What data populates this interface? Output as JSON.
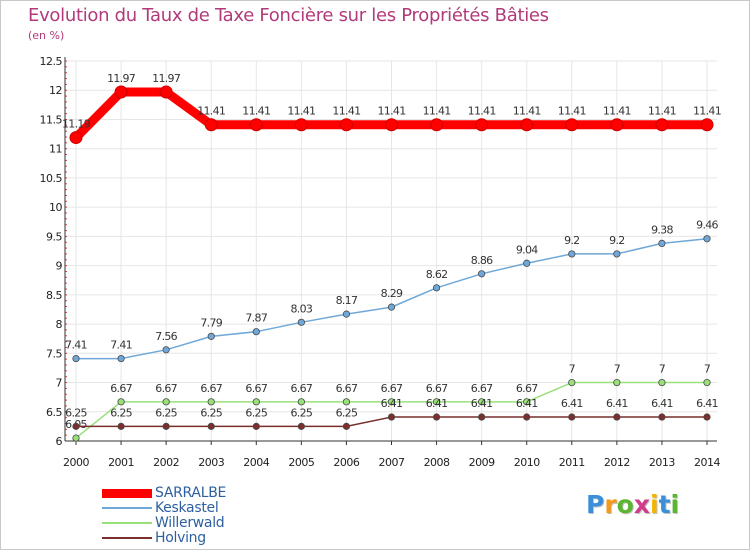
{
  "chart_data": {
    "type": "line",
    "title": "Evolution du Taux de Taxe Foncière sur les Propriétés Bâties",
    "ylabel": "(en %)",
    "xlabel": "",
    "categories": [
      "2000",
      "2001",
      "2002",
      "2003",
      "2004",
      "2005",
      "2006",
      "2007",
      "2008",
      "2009",
      "2010",
      "2011",
      "2012",
      "2013",
      "2014"
    ],
    "ylim": [
      6,
      12.5
    ],
    "yticks": [
      "6",
      "6.5",
      "7",
      "7.5",
      "8",
      "8.5",
      "9",
      "9.5",
      "10",
      "10.5",
      "11",
      "11.5",
      "12",
      "12.5"
    ],
    "grid": true,
    "legend_position": "bottom-left",
    "series": [
      {
        "name": "SARRALBE",
        "color": "#ff0000",
        "values": [
          11.19,
          11.97,
          11.97,
          11.41,
          11.41,
          11.41,
          11.41,
          11.41,
          11.41,
          11.41,
          11.41,
          11.41,
          11.41,
          11.41,
          11.41
        ],
        "labels": [
          "11.19",
          "11.97",
          "11.97",
          "11.41",
          "11.41",
          "11.41",
          "11.41",
          "11.41",
          "11.41",
          "11.41",
          "11.41",
          "11.41",
          "11.41",
          "11.41",
          "11.41"
        ]
      },
      {
        "name": "Keskastel",
        "color": "#6fa8d8",
        "values": [
          7.41,
          7.41,
          7.56,
          7.79,
          7.87,
          8.03,
          8.17,
          8.29,
          8.62,
          8.86,
          9.04,
          9.2,
          9.2,
          9.38,
          9.46
        ],
        "labels": [
          "7.41",
          "7.41",
          "7.56",
          "7.79",
          "7.87",
          "8.03",
          "8.17",
          "8.29",
          "8.62",
          "8.86",
          "9.04",
          "9.2",
          "9.2",
          "9.38",
          "9.46"
        ]
      },
      {
        "name": "Willerwald",
        "color": "#99e07a",
        "values": [
          6.05,
          6.67,
          6.67,
          6.67,
          6.67,
          6.67,
          6.67,
          6.67,
          6.67,
          6.67,
          6.67,
          7,
          7,
          7,
          7
        ],
        "labels": [
          "6.05",
          "6.67",
          "6.67",
          "6.67",
          "6.67",
          "6.67",
          "6.67",
          "6.67",
          "6.67",
          "6.67",
          "6.67",
          "7",
          "7",
          "7",
          "7"
        ]
      },
      {
        "name": "Holving",
        "color": "#7a2f2f",
        "values": [
          6.25,
          6.25,
          6.25,
          6.25,
          6.25,
          6.25,
          6.25,
          6.41,
          6.41,
          6.41,
          6.41,
          6.41,
          6.41,
          6.41,
          6.41
        ],
        "labels": [
          "6.25",
          "6.25",
          "6.25",
          "6.25",
          "6.25",
          "6.25",
          "6.25",
          "6.41",
          "6.41",
          "6.41",
          "6.41",
          "6.41",
          "6.41",
          "6.41",
          "6.41"
        ]
      }
    ]
  },
  "logo": {
    "letters": [
      "P",
      "r",
      "o",
      "x",
      "i",
      "t",
      "i"
    ],
    "colors": [
      "#3b8fd9",
      "#f39a1e",
      "#5cb531",
      "#d23a8a",
      "#f2b500",
      "#3b8fd9",
      "#5cb531"
    ]
  }
}
